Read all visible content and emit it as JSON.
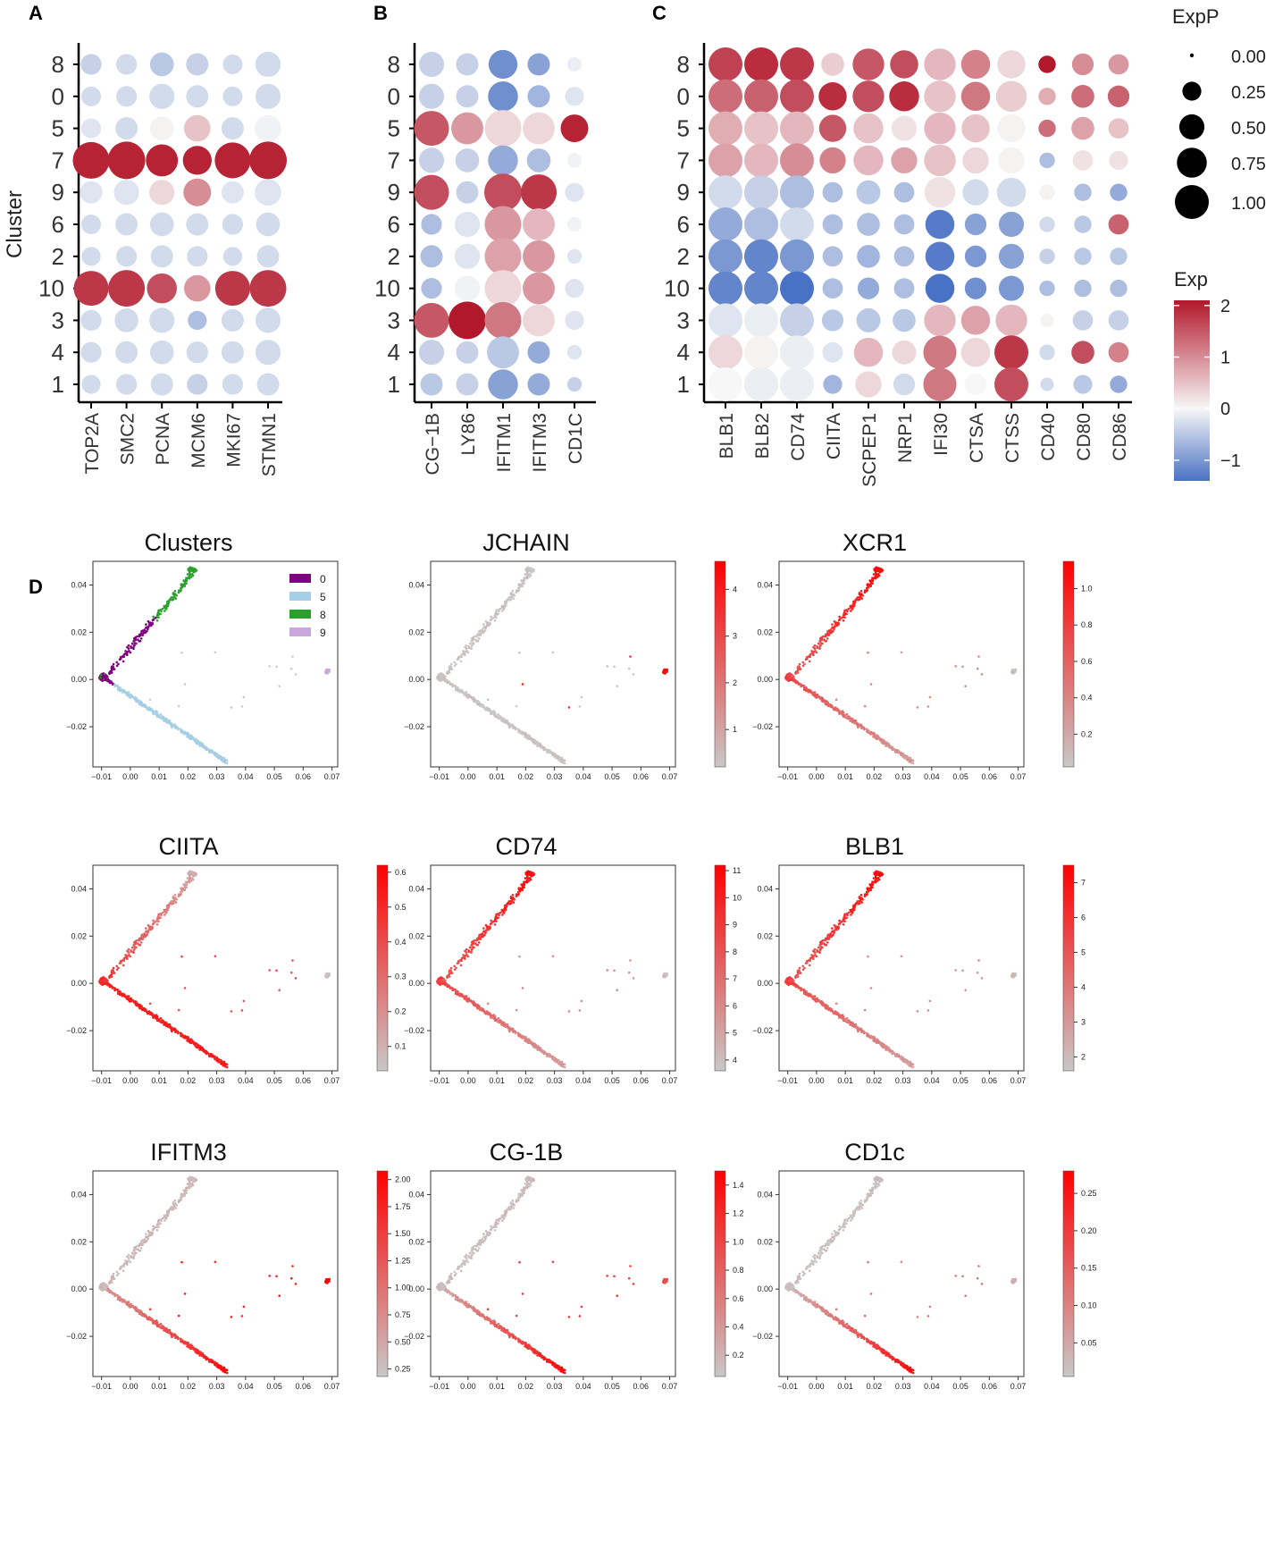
{
  "panels": {
    "A": "A",
    "B": "B",
    "C": "C",
    "D": "D"
  },
  "colors": {
    "exp_high": "#b2182b",
    "exp_mid": "#f7f7f7",
    "exp_low": "#4a72c4",
    "scatter_grey": "#c8c8c8",
    "scatter_red": "#ff0000",
    "cluster0": "#800080",
    "cluster5": "#a6cfe5",
    "cluster8": "#2ca02c",
    "cluster9": "#c9a9d9"
  },
  "chart_data": [
    {
      "id": "A",
      "type": "dot",
      "ylabel": "Cluster",
      "rows": [
        "8",
        "0",
        "5",
        "7",
        "9",
        "6",
        "2",
        "10",
        "3",
        "4",
        "1"
      ],
      "genes": [
        "TOP2A",
        "SMC2",
        "PCNA",
        "MCM6",
        "MKI67",
        "STMN1"
      ],
      "size": [
        [
          0.25,
          0.25,
          0.35,
          0.3,
          0.22,
          0.4
        ],
        [
          0.22,
          0.25,
          0.4,
          0.3,
          0.22,
          0.4
        ],
        [
          0.22,
          0.3,
          0.35,
          0.45,
          0.3,
          0.45
        ],
        [
          0.95,
          1.0,
          0.7,
          0.55,
          0.9,
          1.0
        ],
        [
          0.3,
          0.4,
          0.4,
          0.5,
          0.3,
          0.45
        ],
        [
          0.22,
          0.3,
          0.35,
          0.3,
          0.25,
          0.35
        ],
        [
          0.2,
          0.25,
          0.3,
          0.25,
          0.2,
          0.3
        ],
        [
          0.85,
          0.95,
          0.6,
          0.45,
          0.85,
          0.95
        ],
        [
          0.25,
          0.35,
          0.4,
          0.2,
          0.3,
          0.4
        ],
        [
          0.25,
          0.3,
          0.35,
          0.28,
          0.3,
          0.4
        ],
        [
          0.2,
          0.25,
          0.3,
          0.25,
          0.25,
          0.3
        ]
      ],
      "exp": [
        [
          -0.4,
          -0.3,
          -0.5,
          -0.4,
          -0.3,
          -0.3
        ],
        [
          -0.3,
          -0.3,
          -0.3,
          -0.3,
          -0.3,
          -0.3
        ],
        [
          -0.2,
          -0.3,
          0.05,
          0.5,
          -0.3,
          -0.05
        ],
        [
          2,
          2,
          2,
          2,
          2,
          2
        ],
        [
          -0.2,
          -0.2,
          0.3,
          1.0,
          -0.2,
          -0.2
        ],
        [
          -0.3,
          -0.3,
          -0.3,
          -0.3,
          -0.3,
          -0.3
        ],
        [
          -0.3,
          -0.3,
          -0.3,
          -0.3,
          -0.3,
          -0.3
        ],
        [
          1.8,
          1.8,
          1.6,
          0.9,
          1.8,
          1.8
        ],
        [
          -0.3,
          -0.3,
          -0.3,
          -0.6,
          -0.3,
          -0.3
        ],
        [
          -0.3,
          -0.3,
          -0.3,
          -0.3,
          -0.3,
          -0.3
        ],
        [
          -0.3,
          -0.3,
          -0.3,
          -0.4,
          -0.3,
          -0.3
        ]
      ]
    },
    {
      "id": "B",
      "type": "dot",
      "rows": [
        "8",
        "0",
        "5",
        "7",
        "9",
        "6",
        "2",
        "10",
        "3",
        "4",
        "1"
      ],
      "genes": [
        "CG−1B",
        "LY86",
        "IFITM1",
        "IFITM3",
        "CD1C"
      ],
      "size": [
        [
          0.4,
          0.3,
          0.55,
          0.3,
          0.1
        ],
        [
          0.4,
          0.3,
          0.6,
          0.3,
          0.2
        ],
        [
          0.85,
          0.7,
          0.95,
          0.7,
          0.5
        ],
        [
          0.4,
          0.35,
          0.6,
          0.35,
          0.1
        ],
        [
          0.85,
          0.3,
          1.0,
          0.9,
          0.2
        ],
        [
          0.25,
          0.4,
          0.95,
          0.7,
          0.1
        ],
        [
          0.3,
          0.4,
          0.95,
          0.7,
          0.1
        ],
        [
          0.25,
          0.4,
          0.95,
          0.7,
          0.2
        ],
        [
          0.85,
          1.0,
          0.95,
          0.7,
          0.2
        ],
        [
          0.4,
          0.3,
          0.7,
          0.3,
          0.1
        ],
        [
          0.3,
          0.3,
          0.6,
          0.3,
          0.1
        ]
      ],
      "exp": [
        [
          -0.4,
          -0.4,
          -1.1,
          -0.9,
          -0.1
        ],
        [
          -0.4,
          -0.4,
          -1.1,
          -0.7,
          -0.2
        ],
        [
          1.5,
          0.9,
          0.3,
          0.3,
          2
        ],
        [
          -0.4,
          -0.4,
          -0.8,
          -0.6,
          -0.05
        ],
        [
          1.6,
          -0.4,
          1.6,
          1.8,
          -0.2
        ],
        [
          -0.6,
          -0.2,
          0.9,
          0.6,
          -0.05
        ],
        [
          -0.6,
          -0.2,
          0.8,
          0.9,
          -0.2
        ],
        [
          -0.6,
          -0.05,
          0.3,
          0.9,
          -0.2
        ],
        [
          1.5,
          2.1,
          1.2,
          0.3,
          -0.2
        ],
        [
          -0.4,
          -0.4,
          -0.5,
          -0.8,
          -0.2
        ],
        [
          -0.5,
          -0.4,
          -0.9,
          -0.8,
          -0.4
        ]
      ]
    },
    {
      "id": "C",
      "type": "dot",
      "rows": [
        "8",
        "0",
        "5",
        "7",
        "9",
        "6",
        "2",
        "10",
        "3",
        "4",
        "1"
      ],
      "genes": [
        "BLB1",
        "BLB2",
        "CD74",
        "CIITA",
        "SCPEP1",
        "NRP1",
        "IFI30",
        "CTSA",
        "CTSS",
        "CD40",
        "CD80",
        "CD86"
      ],
      "size": [
        [
          1.0,
          1.0,
          1.0,
          0.4,
          0.85,
          0.65,
          0.85,
          0.7,
          0.65,
          0.2,
          0.35,
          0.3
        ],
        [
          1.0,
          1.0,
          1.0,
          0.65,
          0.85,
          0.75,
          0.85,
          0.7,
          0.8,
          0.2,
          0.4,
          0.35
        ],
        [
          1.0,
          1.0,
          1.0,
          0.6,
          0.75,
          0.5,
          0.85,
          0.65,
          0.65,
          0.2,
          0.4,
          0.3
        ],
        [
          1.0,
          1.0,
          1.0,
          0.55,
          0.75,
          0.55,
          0.85,
          0.55,
          0.55,
          0.15,
          0.3,
          0.25
        ],
        [
          1.0,
          1.0,
          1.0,
          0.3,
          0.45,
          0.3,
          0.8,
          0.55,
          0.7,
          0.15,
          0.2,
          0.2
        ],
        [
          1.0,
          1.0,
          1.0,
          0.3,
          0.4,
          0.3,
          0.7,
          0.35,
          0.5,
          0.15,
          0.2,
          0.3
        ],
        [
          1.0,
          1.0,
          1.0,
          0.3,
          0.4,
          0.3,
          0.7,
          0.35,
          0.5,
          0.15,
          0.2,
          0.2
        ],
        [
          1.0,
          1.0,
          1.0,
          0.3,
          0.35,
          0.3,
          0.7,
          0.35,
          0.5,
          0.15,
          0.2,
          0.2
        ],
        [
          1.0,
          1.0,
          1.0,
          0.35,
          0.45,
          0.4,
          0.85,
          0.7,
          0.85,
          0.1,
          0.3,
          0.3
        ],
        [
          1.0,
          1.0,
          1.0,
          0.3,
          0.7,
          0.45,
          0.95,
          0.7,
          1.0,
          0.15,
          0.4,
          0.3
        ],
        [
          1.0,
          1.0,
          1.0,
          0.25,
          0.55,
          0.35,
          0.95,
          0.35,
          1.0,
          0.1,
          0.25,
          0.2
        ]
      ],
      "exp": [
        [
          1.7,
          1.9,
          1.8,
          0.4,
          1.5,
          1.6,
          0.6,
          1.1,
          0.3,
          2.1,
          1.0,
          0.9
        ],
        [
          1.3,
          1.4,
          1.6,
          1.9,
          1.6,
          1.9,
          0.5,
          1.2,
          0.4,
          0.7,
          1.3,
          1.4
        ],
        [
          0.7,
          0.5,
          0.6,
          1.5,
          0.5,
          0.2,
          0.6,
          0.5,
          0.05,
          1.3,
          0.8,
          0.5
        ],
        [
          0.8,
          0.6,
          1.0,
          1.1,
          0.6,
          0.8,
          0.5,
          0.3,
          0.05,
          -0.6,
          0.2,
          0.2
        ],
        [
          -0.3,
          -0.4,
          -0.6,
          -0.6,
          -0.5,
          -0.6,
          0.2,
          -0.3,
          -0.3,
          0.05,
          -0.6,
          -0.8
        ],
        [
          -0.8,
          -0.6,
          -0.3,
          -0.6,
          -0.6,
          -0.6,
          -1.3,
          -0.9,
          -0.9,
          -0.3,
          -0.5,
          1.4
        ],
        [
          -1.0,
          -1.2,
          -1.0,
          -0.6,
          -0.7,
          -0.6,
          -1.3,
          -1.0,
          -0.9,
          -0.4,
          -0.5,
          -0.5
        ],
        [
          -1.2,
          -1.2,
          -1.5,
          -0.6,
          -0.8,
          -0.6,
          -1.5,
          -1.1,
          -1.0,
          -0.6,
          -0.6,
          -0.6
        ],
        [
          -0.2,
          -0.1,
          -0.4,
          -0.5,
          -0.5,
          -0.5,
          0.6,
          0.8,
          0.6,
          0.05,
          -0.4,
          -0.4
        ],
        [
          0.3,
          0.05,
          -0.1,
          -0.2,
          0.6,
          0.3,
          1.2,
          0.3,
          1.8,
          -0.3,
          1.6,
          1.1
        ],
        [
          0.0,
          -0.1,
          -0.1,
          -0.7,
          0.3,
          -0.3,
          1.2,
          0.0,
          1.6,
          -0.3,
          -0.5,
          -0.8
        ]
      ]
    },
    {
      "id": "legend_size",
      "title": "ExpP",
      "values": [
        "0.00",
        "0.25",
        "0.50",
        "0.75",
        "1.00"
      ]
    },
    {
      "id": "legend_color",
      "title": "Exp",
      "ticks": [
        "2",
        "1",
        "0",
        "−1"
      ],
      "range": [
        -1.4,
        2.1
      ]
    },
    {
      "id": "D",
      "type": "scatter",
      "x_ticks": [
        "−0.01",
        "0.00",
        "0.01",
        "0.02",
        "0.03",
        "0.04",
        "0.05",
        "0.06",
        "0.07"
      ],
      "y_ticks": [
        "0.04",
        "0.02",
        "0.00",
        "−0.02"
      ],
      "xlim": [
        -0.013,
        0.072
      ],
      "ylim": [
        -0.037,
        0.05
      ],
      "legend": [
        "0",
        "5",
        "8",
        "9"
      ],
      "plots": [
        {
          "title": "Clusters",
          "mode": "clusters"
        },
        {
          "title": "JCHAIN",
          "mode": "pattern",
          "pattern": "tip",
          "cb": [
            "4",
            "3",
            "2",
            "1"
          ],
          "cbv": [
            4,
            3,
            2,
            1
          ],
          "cbr": [
            0.2,
            4.6
          ]
        },
        {
          "title": "XCR1",
          "mode": "pattern",
          "pattern": "dc1",
          "cb": [
            "1.0",
            "0.8",
            "0.6",
            "0.4",
            "0.2"
          ],
          "cbv": [
            1.0,
            0.8,
            0.6,
            0.4,
            0.2
          ],
          "cbr": [
            0.02,
            1.15
          ]
        },
        {
          "title": "CIITA",
          "mode": "pattern",
          "pattern": "ciita",
          "cb": [
            "0.6",
            "0.5",
            "0.4",
            "0.3",
            "0.2",
            "0.1"
          ],
          "cbv": [
            0.6,
            0.5,
            0.4,
            0.3,
            0.2,
            0.1
          ],
          "cbr": [
            0.03,
            0.62
          ]
        },
        {
          "title": "CD74",
          "mode": "pattern",
          "pattern": "dc1",
          "cb": [
            "11",
            "10",
            "9",
            "8",
            "7",
            "6",
            "5",
            "4"
          ],
          "cbv": [
            11,
            10,
            9,
            8,
            7,
            6,
            5,
            4
          ],
          "cbr": [
            3.6,
            11.2
          ]
        },
        {
          "title": "BLB1",
          "mode": "pattern",
          "pattern": "dc1",
          "cb": [
            "7",
            "6",
            "5",
            "4",
            "3",
            "2"
          ],
          "cbv": [
            7,
            6,
            5,
            4,
            3,
            2
          ],
          "cbr": [
            1.6,
            7.5
          ]
        },
        {
          "title": "IFITM3",
          "mode": "pattern",
          "pattern": "ifitm3",
          "cb": [
            "2.00",
            "1.75",
            "1.50",
            "1.25",
            "1.00",
            "0.75",
            "0.50",
            "0.25"
          ],
          "cbv": [
            2.0,
            1.75,
            1.5,
            1.25,
            1.0,
            0.75,
            0.5,
            0.25
          ],
          "cbr": [
            0.18,
            2.08
          ]
        },
        {
          "title": "CG-1B",
          "mode": "pattern",
          "pattern": "lower",
          "cb": [
            "1.4",
            "1.2",
            "1.0",
            "0.8",
            "0.6",
            "0.4",
            "0.2"
          ],
          "cbv": [
            1.4,
            1.2,
            1.0,
            0.8,
            0.6,
            0.4,
            0.2
          ],
          "cbr": [
            0.05,
            1.5
          ]
        },
        {
          "title": "CD1c",
          "mode": "pattern",
          "pattern": "lower2",
          "cb": [
            "0.25",
            "0.20",
            "0.15",
            "0.10",
            "0.05"
          ],
          "cbv": [
            0.25,
            0.2,
            0.15,
            0.1,
            0.05
          ],
          "cbr": [
            0.005,
            0.28
          ]
        }
      ]
    }
  ]
}
